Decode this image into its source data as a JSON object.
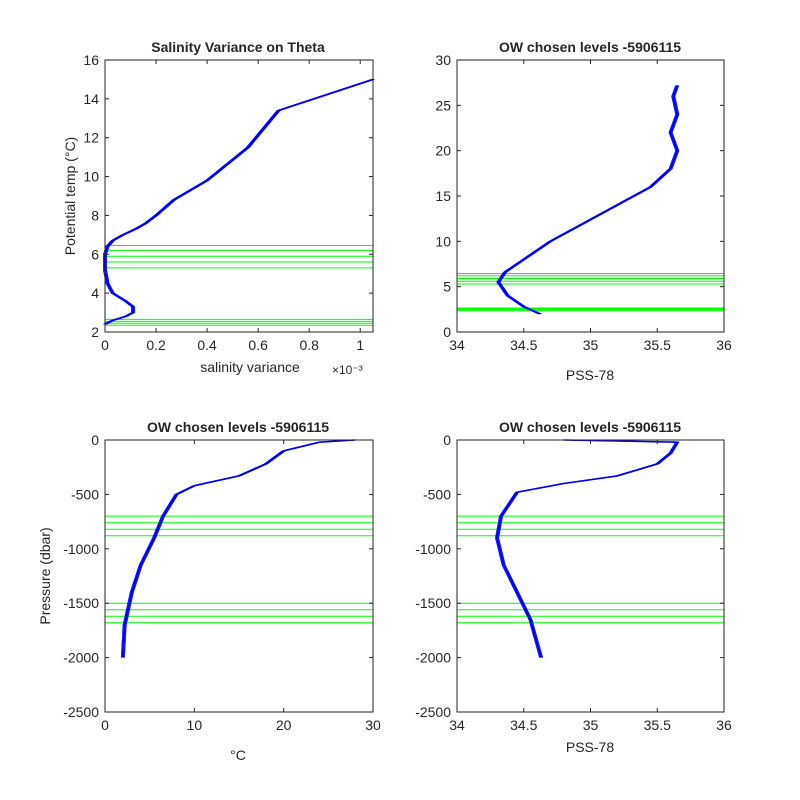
{
  "figure": {
    "background": "#ffffff",
    "axes_color": "#262626",
    "profile_color": "#0000ff",
    "level_color": "#00ff00"
  },
  "chart_data": [
    {
      "type": "line",
      "title": "Salinity Variance on Theta",
      "xlabel": "salinity variance",
      "ylabel": "Potential temp (°C)",
      "x_exponent_label": "×10⁻³",
      "xlim": [
        0,
        0.00105
      ],
      "ylim": [
        2,
        16
      ],
      "x_ticks": [
        0,
        0.0002,
        0.0004,
        0.0006,
        0.0008,
        0.001
      ],
      "x_tick_labels": [
        "0",
        "0.2",
        "0.4",
        "0.6",
        "0.8",
        "1"
      ],
      "y_ticks": [
        2,
        4,
        6,
        8,
        10,
        12,
        14,
        16
      ],
      "y_tick_labels": [
        "2",
        "4",
        "6",
        "8",
        "10",
        "12",
        "14",
        "16"
      ],
      "series": [
        {
          "color": "#0000ff",
          "points": [
            [
              0.0,
              2.4
            ],
            [
              3e-05,
              2.6
            ],
            [
              8e-05,
              2.8
            ],
            [
              0.00011,
              3.0
            ],
            [
              0.00011,
              3.3
            ],
            [
              8e-05,
              3.6
            ],
            [
              3e-05,
              4.0
            ],
            [
              1e-05,
              4.5
            ],
            [
              0.0,
              5.2
            ],
            [
              0.0,
              6.0
            ],
            [
              1e-05,
              6.4
            ],
            [
              3e-05,
              6.7
            ],
            [
              7e-05,
              7.0
            ],
            [
              0.00012,
              7.3
            ],
            [
              0.00016,
              7.6
            ],
            [
              0.0002,
              8.0
            ],
            [
              0.00027,
              8.8
            ],
            [
              0.0004,
              9.8
            ],
            [
              0.00056,
              11.5
            ],
            [
              0.00068,
              13.4
            ],
            [
              0.00105,
              15.0
            ]
          ]
        }
      ],
      "level_lines": [
        2.35,
        2.45,
        2.55,
        2.65,
        5.3,
        5.6,
        5.9,
        6.2,
        6.45
      ]
    },
    {
      "type": "line",
      "title": "OW chosen levels -5906115",
      "xlabel": "PSS-78",
      "ylabel": "",
      "xlim": [
        34,
        36
      ],
      "ylim": [
        0,
        30
      ],
      "x_ticks": [
        34,
        34.5,
        35,
        35.5,
        36
      ],
      "x_tick_labels": [
        "34",
        "34.5",
        "35",
        "35.5",
        "36"
      ],
      "y_ticks": [
        0,
        5,
        10,
        15,
        20,
        25,
        30
      ],
      "y_tick_labels": [
        "0",
        "5",
        "10",
        "15",
        "20",
        "25",
        "30"
      ],
      "series": [
        {
          "color": "#0000ff",
          "points": [
            [
              34.62,
              2.0
            ],
            [
              34.5,
              2.8
            ],
            [
              34.38,
              4.0
            ],
            [
              34.31,
              5.5
            ],
            [
              34.36,
              6.6
            ],
            [
              34.5,
              8.0
            ],
            [
              34.7,
              10.0
            ],
            [
              34.95,
              12.0
            ],
            [
              35.2,
              14.0
            ],
            [
              35.45,
              16.0
            ],
            [
              35.6,
              18.0
            ],
            [
              35.65,
              20.0
            ],
            [
              35.6,
              22.0
            ],
            [
              35.65,
              24.0
            ],
            [
              35.62,
              26.0
            ],
            [
              35.65,
              27.2
            ]
          ]
        }
      ],
      "level_lines": [
        2.35,
        2.45,
        2.55,
        2.65,
        5.3,
        5.6,
        5.9,
        6.2,
        6.45
      ]
    },
    {
      "type": "line",
      "title": "OW chosen levels -5906115",
      "xlabel": "°C",
      "ylabel": "Pressure (dbar)",
      "xlim": [
        0,
        30
      ],
      "ylim": [
        -2500,
        0
      ],
      "x_ticks": [
        0,
        10,
        20,
        30
      ],
      "x_tick_labels": [
        "0",
        "10",
        "20",
        "30"
      ],
      "y_ticks": [
        -2500,
        -2000,
        -1500,
        -1000,
        -500,
        0
      ],
      "y_tick_labels": [
        "-2500",
        "-2000",
        "-1500",
        "-1000",
        "-500",
        "0"
      ],
      "series": [
        {
          "color": "#0000ff",
          "points": [
            [
              2.0,
              -2000
            ],
            [
              2.2,
              -1700
            ],
            [
              3.0,
              -1400
            ],
            [
              4.0,
              -1150
            ],
            [
              5.5,
              -900
            ],
            [
              6.5,
              -700
            ],
            [
              8.0,
              -500
            ],
            [
              10.0,
              -420
            ],
            [
              15.0,
              -330
            ],
            [
              18.0,
              -220
            ],
            [
              20.0,
              -100
            ],
            [
              24.0,
              -20
            ],
            [
              28.0,
              0
            ]
          ]
        }
      ],
      "level_lines": [
        -700,
        -760,
        -820,
        -880,
        -1500,
        -1560,
        -1620,
        -1680
      ]
    },
    {
      "type": "line",
      "title": "OW chosen levels -5906115",
      "xlabel": "PSS-78",
      "ylabel": "",
      "xlim": [
        34,
        36
      ],
      "ylim": [
        -2500,
        0
      ],
      "x_ticks": [
        34,
        34.5,
        35,
        35.5,
        36
      ],
      "x_tick_labels": [
        "34",
        "34.5",
        "35",
        "35.5",
        "36"
      ],
      "y_ticks": [
        -2500,
        -2000,
        -1500,
        -1000,
        -500,
        0
      ],
      "y_tick_labels": [
        "-2500",
        "-2000",
        "-1500",
        "-1000",
        "-500",
        "0"
      ],
      "series": [
        {
          "color": "#0000ff",
          "points": [
            [
              34.63,
              -2000
            ],
            [
              34.55,
              -1650
            ],
            [
              34.45,
              -1400
            ],
            [
              34.35,
              -1150
            ],
            [
              34.3,
              -900
            ],
            [
              34.33,
              -700
            ],
            [
              34.45,
              -480
            ],
            [
              34.8,
              -400
            ],
            [
              35.2,
              -330
            ],
            [
              35.5,
              -220
            ],
            [
              35.6,
              -120
            ],
            [
              35.65,
              -20
            ],
            [
              34.8,
              0
            ]
          ]
        }
      ],
      "level_lines": [
        -700,
        -760,
        -820,
        -880,
        -1500,
        -1560,
        -1620,
        -1680
      ]
    }
  ]
}
